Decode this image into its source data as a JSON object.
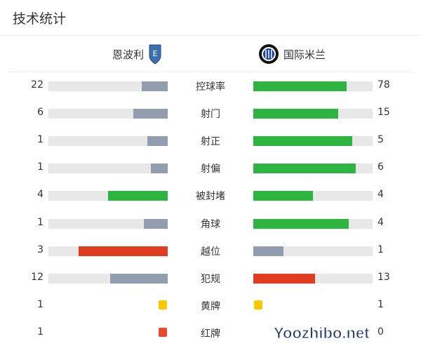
{
  "title": "技术统计",
  "home": {
    "name": "恩波利",
    "logo": "empoli-crest-icon"
  },
  "away": {
    "name": "国际米兰",
    "logo": "inter-crest-icon"
  },
  "colors": {
    "track": "#e8e8e8",
    "gray": "#929db0",
    "green": "#2db441",
    "red": "#e03c1f",
    "yellow": "#f8c900"
  },
  "stats": [
    {
      "label": "控球率",
      "home": "22",
      "away": "78",
      "home_pct": 22,
      "away_pct": 78,
      "home_color": "#929db0",
      "away_color": "#2db441"
    },
    {
      "label": "射门",
      "home": "6",
      "away": "15",
      "home_pct": 29,
      "away_pct": 71,
      "home_color": "#929db0",
      "away_color": "#2db441"
    },
    {
      "label": "射正",
      "home": "1",
      "away": "5",
      "home_pct": 17,
      "away_pct": 83,
      "home_color": "#929db0",
      "away_color": "#2db441"
    },
    {
      "label": "射偏",
      "home": "1",
      "away": "6",
      "home_pct": 14,
      "away_pct": 86,
      "home_color": "#929db0",
      "away_color": "#2db441"
    },
    {
      "label": "被封堵",
      "home": "4",
      "away": "4",
      "home_pct": 50,
      "away_pct": 50,
      "home_color": "#2db441",
      "away_color": "#2db441"
    },
    {
      "label": "角球",
      "home": "1",
      "away": "4",
      "home_pct": 20,
      "away_pct": 80,
      "home_color": "#929db0",
      "away_color": "#2db441"
    },
    {
      "label": "越位",
      "home": "3",
      "away": "1",
      "home_pct": 75,
      "away_pct": 25,
      "home_color": "#e03c1f",
      "away_color": "#929db0"
    },
    {
      "label": "犯规",
      "home": "12",
      "away": "13",
      "home_pct": 48,
      "away_pct": 52,
      "home_color": "#929db0",
      "away_color": "#e03c1f"
    }
  ],
  "cards": [
    {
      "label": "黄牌",
      "home": "1",
      "away": "1",
      "home_show": true,
      "away_show": true,
      "color": "#f8c900"
    },
    {
      "label": "红牌",
      "home": "1",
      "away": "0",
      "home_show": true,
      "away_show": false,
      "color": "#e84a2e"
    }
  ],
  "watermark": "Yoozhibo.net"
}
